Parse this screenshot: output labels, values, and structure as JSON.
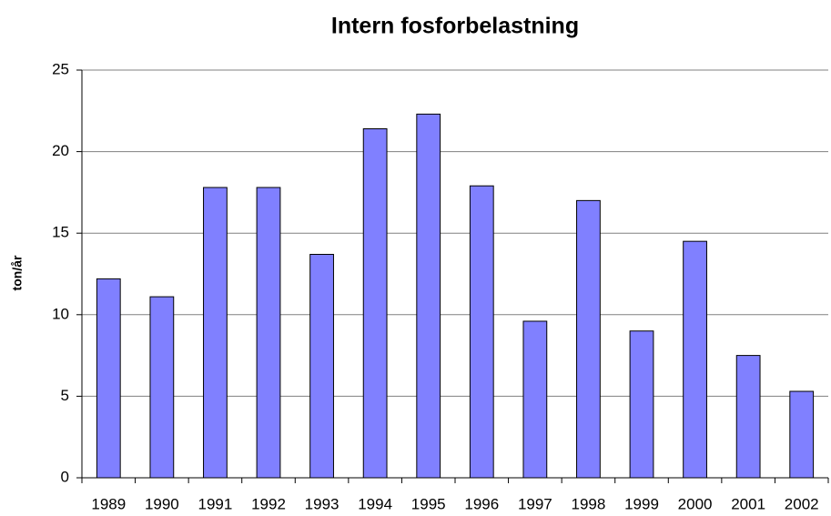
{
  "chart_data": {
    "type": "bar",
    "title": "Intern fosforbelastning",
    "y_label": "ton/år",
    "categories": [
      "1989",
      "1990",
      "1991",
      "1992",
      "1993",
      "1994",
      "1995",
      "1996",
      "1997",
      "1998",
      "1999",
      "2000",
      "2001",
      "2002"
    ],
    "values": [
      12.2,
      11.1,
      17.8,
      17.8,
      13.7,
      21.4,
      22.3,
      17.9,
      9.6,
      17.0,
      9.0,
      14.5,
      7.5,
      5.3
    ],
    "color": "#8080ff",
    "ylim": [
      0,
      25
    ],
    "yticks": [
      0,
      5,
      10,
      15,
      20,
      25
    ],
    "grid": true
  }
}
